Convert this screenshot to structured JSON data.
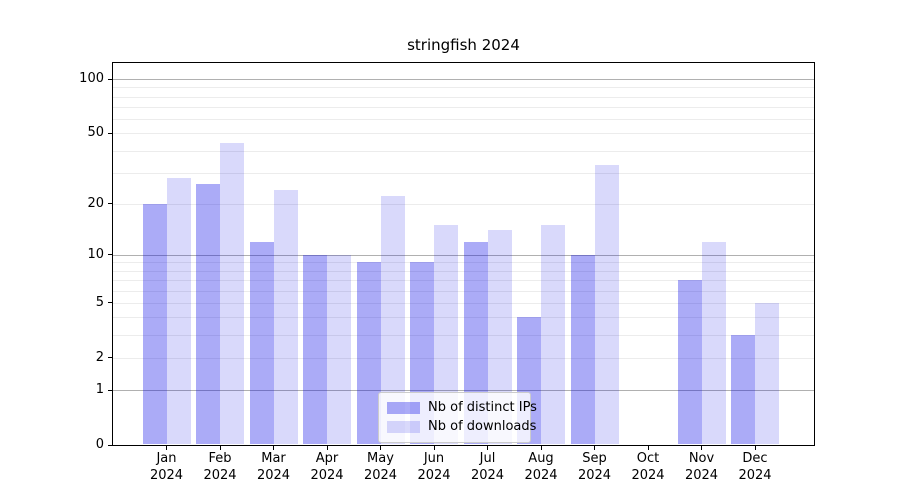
{
  "chart_data": {
    "type": "bar",
    "title": "stringfish 2024",
    "x_tick_labels": [
      {
        "month": "Jan",
        "year": "2024"
      },
      {
        "month": "Feb",
        "year": "2024"
      },
      {
        "month": "Mar",
        "year": "2024"
      },
      {
        "month": "Apr",
        "year": "2024"
      },
      {
        "month": "May",
        "year": "2024"
      },
      {
        "month": "Jun",
        "year": "2024"
      },
      {
        "month": "Jul",
        "year": "2024"
      },
      {
        "month": "Aug",
        "year": "2024"
      },
      {
        "month": "Sep",
        "year": "2024"
      },
      {
        "month": "Oct",
        "year": "2024"
      },
      {
        "month": "Nov",
        "year": "2024"
      },
      {
        "month": "Dec",
        "year": "2024"
      }
    ],
    "series": [
      {
        "name": "Nb of distinct IPs",
        "color": "rgba(0,0,230,0.33)",
        "values": [
          20,
          26,
          12,
          10,
          9,
          9,
          12,
          4,
          10,
          0,
          7,
          3
        ]
      },
      {
        "name": "Nb of downloads",
        "color": "rgba(0,0,230,0.15)",
        "values": [
          28,
          44,
          24,
          10,
          22,
          15,
          14,
          15,
          33,
          0,
          12,
          5
        ]
      }
    ],
    "yscale": "log1p",
    "ylim": [
      0,
      124
    ],
    "y_tick_labels": [
      "100",
      "50",
      "20",
      "10",
      "5",
      "2",
      "1",
      "0"
    ],
    "grid": true,
    "legend_position": "lower center"
  }
}
